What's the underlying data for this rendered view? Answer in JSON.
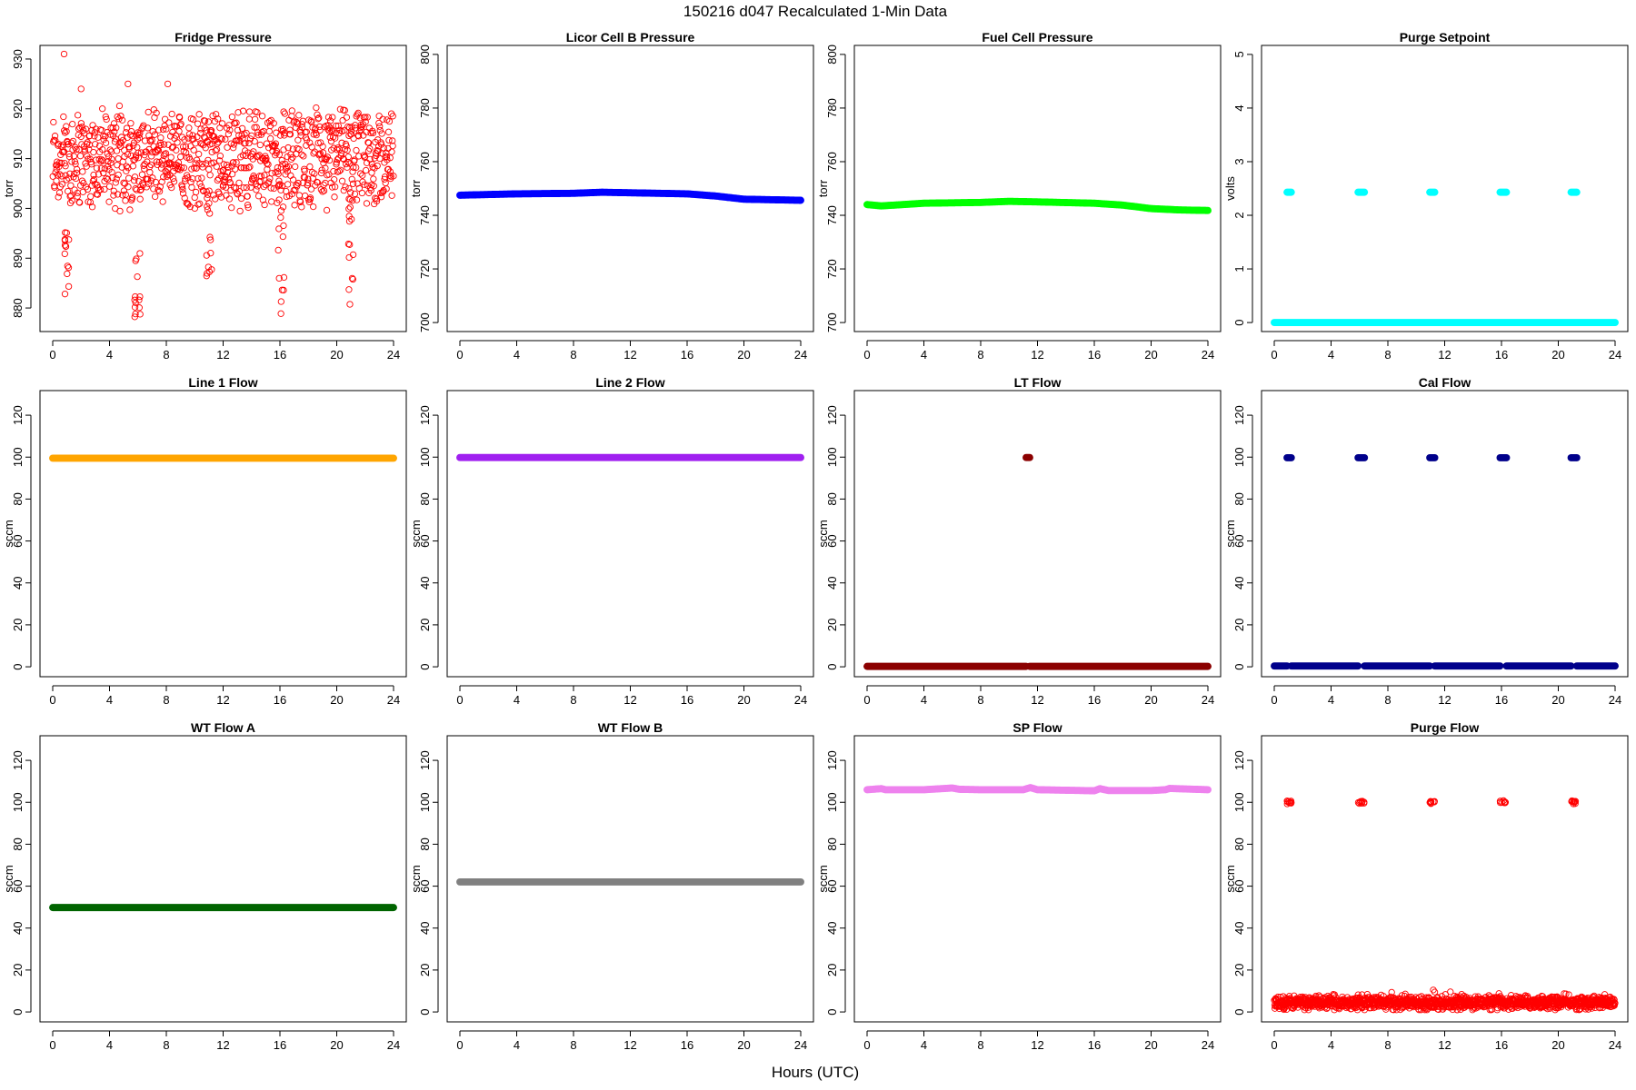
{
  "figure": {
    "title": "150216   d047   Recalculated 1-Min Data",
    "xlabel": "Hours (UTC)"
  },
  "chart_data": [
    {
      "type": "scatter",
      "title": "Fridge Pressure",
      "ylabel": "torr",
      "xlim": [
        0,
        24
      ],
      "ylim": [
        876,
        932
      ],
      "xticks": [
        0,
        4,
        8,
        12,
        16,
        20,
        24
      ],
      "yticks": [
        880,
        890,
        900,
        910,
        920,
        930
      ],
      "color": "#ff0000",
      "marker": "open-circle",
      "series": [
        {
          "kind": "scatter-noise",
          "points_per_hour": 42,
          "mean": 910,
          "spread": 11,
          "dips": [
            {
              "x": [
                0.85,
                1.15
              ],
              "y": [
                881,
                896
              ]
            },
            {
              "x": [
                5.75,
                6.2
              ],
              "y": [
                878,
                891
              ]
            },
            {
              "x": [
                10.8,
                11.2
              ],
              "y": [
                884,
                903
              ]
            },
            {
              "x": [
                15.8,
                16.3
              ],
              "y": [
                878,
                903
              ]
            },
            {
              "x": [
                20.8,
                21.2
              ],
              "y": [
                877,
                903
              ]
            }
          ],
          "outliers": [
            {
              "x": 0.8,
              "y": 931
            },
            {
              "x": 2.0,
              "y": 924
            },
            {
              "x": 5.3,
              "y": 925
            },
            {
              "x": 8.1,
              "y": 925
            }
          ]
        }
      ]
    },
    {
      "type": "scatter",
      "title": "Licor Cell B Pressure",
      "ylabel": "torr",
      "xlim": [
        0,
        24
      ],
      "ylim": [
        698,
        802
      ],
      "xticks": [
        0,
        4,
        8,
        12,
        16,
        20,
        24
      ],
      "yticks": [
        700,
        720,
        740,
        760,
        780,
        800
      ],
      "color": "#0000ff",
      "marker": "filled-dense",
      "series": [
        {
          "kind": "trend",
          "x": [
            0,
            4,
            8,
            10,
            12,
            16,
            18,
            20,
            22,
            24
          ],
          "y": [
            747.5,
            748,
            748.2,
            748.6,
            748.4,
            748,
            747.2,
            746,
            745.8,
            745.6
          ]
        }
      ]
    },
    {
      "type": "scatter",
      "title": "Fuel Cell Pressure",
      "ylabel": "torr",
      "xlim": [
        0,
        24
      ],
      "ylim": [
        698,
        802
      ],
      "xticks": [
        0,
        4,
        8,
        12,
        16,
        20,
        24
      ],
      "yticks": [
        700,
        720,
        740,
        760,
        780,
        800
      ],
      "color": "#00ff00",
      "marker": "filled-dense",
      "series": [
        {
          "kind": "trend",
          "x": [
            0,
            1,
            4,
            8,
            10,
            12,
            16,
            18,
            20,
            22,
            24
          ],
          "y": [
            744,
            743.5,
            744.5,
            744.8,
            745.2,
            745,
            744.5,
            743.8,
            742.5,
            742,
            741.8
          ]
        }
      ]
    },
    {
      "type": "scatter",
      "title": "Purge Setpoint",
      "ylabel": "volts",
      "xlim": [
        0,
        24
      ],
      "ylim": [
        -0.1,
        5.1
      ],
      "xticks": [
        0,
        4,
        8,
        12,
        16,
        20,
        24
      ],
      "yticks": [
        0,
        1,
        2,
        3,
        4,
        5
      ],
      "color": "#00ffff",
      "marker": "filled-dense",
      "series": [
        {
          "kind": "segment",
          "x": [
            0,
            24
          ],
          "y": 0
        },
        {
          "kind": "segment",
          "x": [
            0.9,
            1.2
          ],
          "y": 2.43
        },
        {
          "kind": "segment",
          "x": [
            5.9,
            6.35
          ],
          "y": 2.43
        },
        {
          "kind": "segment",
          "x": [
            10.95,
            11.3
          ],
          "y": 2.43
        },
        {
          "kind": "segment",
          "x": [
            15.9,
            16.35
          ],
          "y": 2.43
        },
        {
          "kind": "segment",
          "x": [
            20.9,
            21.3
          ],
          "y": 2.43
        }
      ]
    },
    {
      "type": "scatter",
      "title": "Line 1 Flow",
      "ylabel": "sccm",
      "xlim": [
        0,
        24
      ],
      "ylim": [
        -3,
        130
      ],
      "xticks": [
        0,
        4,
        8,
        12,
        16,
        20,
        24
      ],
      "yticks": [
        0,
        20,
        40,
        60,
        80,
        100,
        120
      ],
      "color": "#ffa500",
      "marker": "filled-dense",
      "series": [
        {
          "kind": "segment",
          "x": [
            0,
            24
          ],
          "y": 99.5
        }
      ]
    },
    {
      "type": "scatter",
      "title": "Line 2 Flow",
      "ylabel": "sccm",
      "xlim": [
        0,
        24
      ],
      "ylim": [
        -3,
        130
      ],
      "xticks": [
        0,
        4,
        8,
        12,
        16,
        20,
        24
      ],
      "yticks": [
        0,
        20,
        40,
        60,
        80,
        100,
        120
      ],
      "color": "#a020f0",
      "marker": "filled-dense",
      "series": [
        {
          "kind": "segment",
          "x": [
            0,
            24
          ],
          "y": 99.8
        }
      ]
    },
    {
      "type": "scatter",
      "title": "LT Flow",
      "ylabel": "sccm",
      "xlim": [
        0,
        24
      ],
      "ylim": [
        -3,
        130
      ],
      "xticks": [
        0,
        4,
        8,
        12,
        16,
        20,
        24
      ],
      "yticks": [
        0,
        20,
        40,
        60,
        80,
        100,
        120
      ],
      "color": "#8b0000",
      "marker": "filled-dense",
      "series": [
        {
          "kind": "segment",
          "x": [
            0,
            11.2
          ],
          "y": 0.2
        },
        {
          "kind": "segment",
          "x": [
            11.45,
            24
          ],
          "y": 0.2
        },
        {
          "kind": "segment",
          "x": [
            11.2,
            11.45
          ],
          "y": 99.8
        }
      ]
    },
    {
      "type": "scatter",
      "title": "Cal Flow",
      "ylabel": "sccm",
      "xlim": [
        0,
        24
      ],
      "ylim": [
        -3,
        130
      ],
      "xticks": [
        0,
        4,
        8,
        12,
        16,
        20,
        24
      ],
      "yticks": [
        0,
        20,
        40,
        60,
        80,
        100,
        120
      ],
      "color": "#00008b",
      "marker": "filled-dense",
      "series": [
        {
          "kind": "segment",
          "x": [
            0,
            0.9
          ],
          "y": 0.4
        },
        {
          "kind": "segment",
          "x": [
            1.2,
            5.9
          ],
          "y": 0.4
        },
        {
          "kind": "segment",
          "x": [
            6.35,
            10.95
          ],
          "y": 0.4
        },
        {
          "kind": "segment",
          "x": [
            11.3,
            15.9
          ],
          "y": 0.4
        },
        {
          "kind": "segment",
          "x": [
            16.35,
            20.9
          ],
          "y": 0.4
        },
        {
          "kind": "segment",
          "x": [
            21.3,
            24
          ],
          "y": 0.4
        },
        {
          "kind": "segment",
          "x": [
            0.9,
            1.2
          ],
          "y": 99.7
        },
        {
          "kind": "segment",
          "x": [
            5.9,
            6.35
          ],
          "y": 99.7
        },
        {
          "kind": "segment",
          "x": [
            10.95,
            11.3
          ],
          "y": 99.7
        },
        {
          "kind": "segment",
          "x": [
            15.9,
            16.35
          ],
          "y": 99.7
        },
        {
          "kind": "segment",
          "x": [
            20.9,
            21.3
          ],
          "y": 99.7
        }
      ]
    },
    {
      "type": "scatter",
      "title": "WT Flow A",
      "ylabel": "sccm",
      "xlim": [
        0,
        24
      ],
      "ylim": [
        -3,
        130
      ],
      "xticks": [
        0,
        4,
        8,
        12,
        16,
        20,
        24
      ],
      "yticks": [
        0,
        20,
        40,
        60,
        80,
        100,
        120
      ],
      "color": "#006400",
      "marker": "filled-dense",
      "series": [
        {
          "kind": "segment",
          "x": [
            0,
            24
          ],
          "y": 49.8
        }
      ]
    },
    {
      "type": "scatter",
      "title": "WT Flow B",
      "ylabel": "sccm",
      "xlim": [
        0,
        24
      ],
      "ylim": [
        -3,
        130
      ],
      "xticks": [
        0,
        4,
        8,
        12,
        16,
        20,
        24
      ],
      "yticks": [
        0,
        20,
        40,
        60,
        80,
        100,
        120
      ],
      "color": "#808080",
      "marker": "filled-dense",
      "series": [
        {
          "kind": "segment",
          "x": [
            0,
            24
          ],
          "y": 62
        }
      ]
    },
    {
      "type": "scatter",
      "title": "SP Flow",
      "ylabel": "sccm",
      "xlim": [
        0,
        24
      ],
      "ylim": [
        -3,
        130
      ],
      "xticks": [
        0,
        4,
        8,
        12,
        16,
        20,
        24
      ],
      "yticks": [
        0,
        20,
        40,
        60,
        80,
        100,
        120
      ],
      "color": "#ee82ee",
      "marker": "filled-dense",
      "series": [
        {
          "kind": "trend",
          "x": [
            0,
            1,
            1.3,
            4,
            6,
            6.5,
            8,
            11,
            11.5,
            12,
            16,
            16.4,
            17,
            20,
            21,
            21.3,
            24
          ],
          "y": [
            106,
            106.5,
            106,
            106,
            106.8,
            106.2,
            106,
            106,
            107,
            106,
            105.5,
            106.5,
            105.6,
            105.6,
            106,
            106.6,
            106
          ]
        }
      ]
    },
    {
      "type": "scatter",
      "title": "Purge Flow",
      "ylabel": "sccm",
      "xlim": [
        0,
        24
      ],
      "ylim": [
        -3,
        130
      ],
      "xticks": [
        0,
        4,
        8,
        12,
        16,
        20,
        24
      ],
      "yticks": [
        0,
        20,
        40,
        60,
        80,
        100,
        120
      ],
      "color": "#ff0000",
      "marker": "open-circle",
      "series": [
        {
          "kind": "noise-band",
          "x": [
            0,
            24
          ],
          "mean": 4.5,
          "spread": 3
        },
        {
          "kind": "cluster",
          "x": [
            0.9,
            1.2
          ],
          "y": 100
        },
        {
          "kind": "cluster",
          "x": [
            5.9,
            6.35
          ],
          "y": 100
        },
        {
          "kind": "cluster",
          "x": [
            10.95,
            11.3
          ],
          "y": 100
        },
        {
          "kind": "cluster",
          "x": [
            15.9,
            16.35
          ],
          "y": 100
        },
        {
          "kind": "cluster",
          "x": [
            20.9,
            21.3
          ],
          "y": 100
        }
      ]
    }
  ]
}
